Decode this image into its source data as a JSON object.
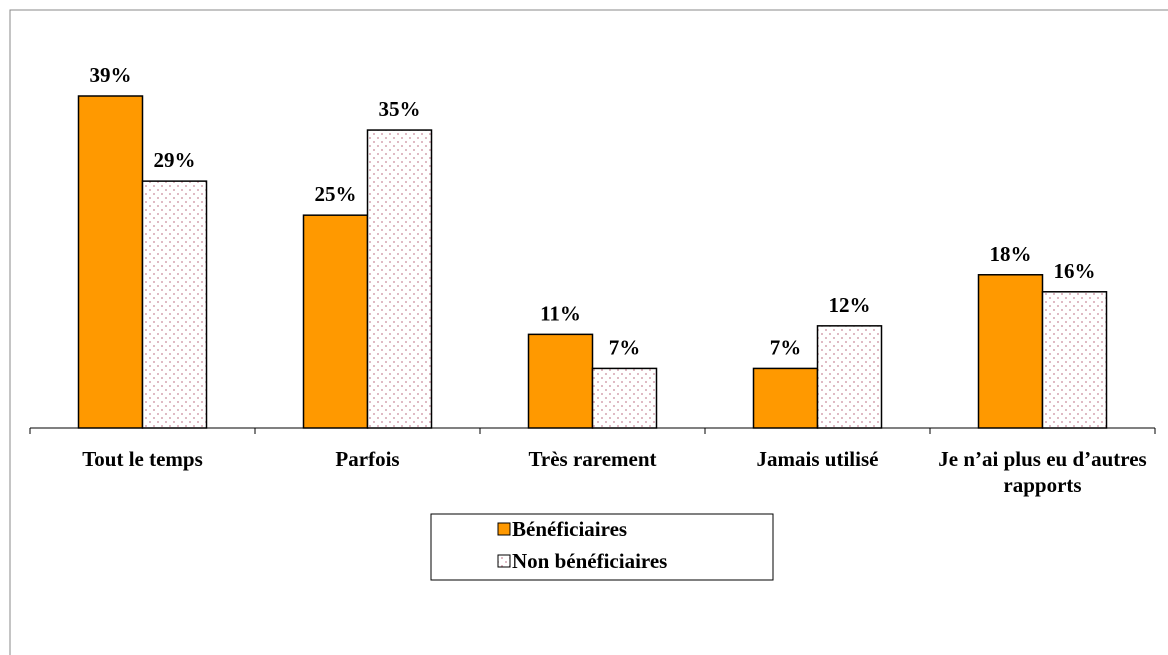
{
  "chart_data": {
    "type": "bar",
    "categories": [
      "Tout le temps",
      "Parfois",
      "Très rarement",
      "Jamais utilisé",
      "Je n’ai plus eu d’autres rapports"
    ],
    "series": [
      {
        "name": "Bénéficiaires",
        "color": "#ff9900",
        "values": [
          39,
          25,
          11,
          7,
          18
        ],
        "value_labels": [
          "39%",
          "25%",
          "11%",
          "7%",
          "18%"
        ]
      },
      {
        "name": "Non bénéficiaires",
        "color": "dotted",
        "values": [
          29,
          35,
          7,
          12,
          16
        ],
        "value_labels": [
          "29%",
          "35%",
          "7%",
          "12%",
          "16%"
        ]
      }
    ],
    "legend": "bottom"
  }
}
